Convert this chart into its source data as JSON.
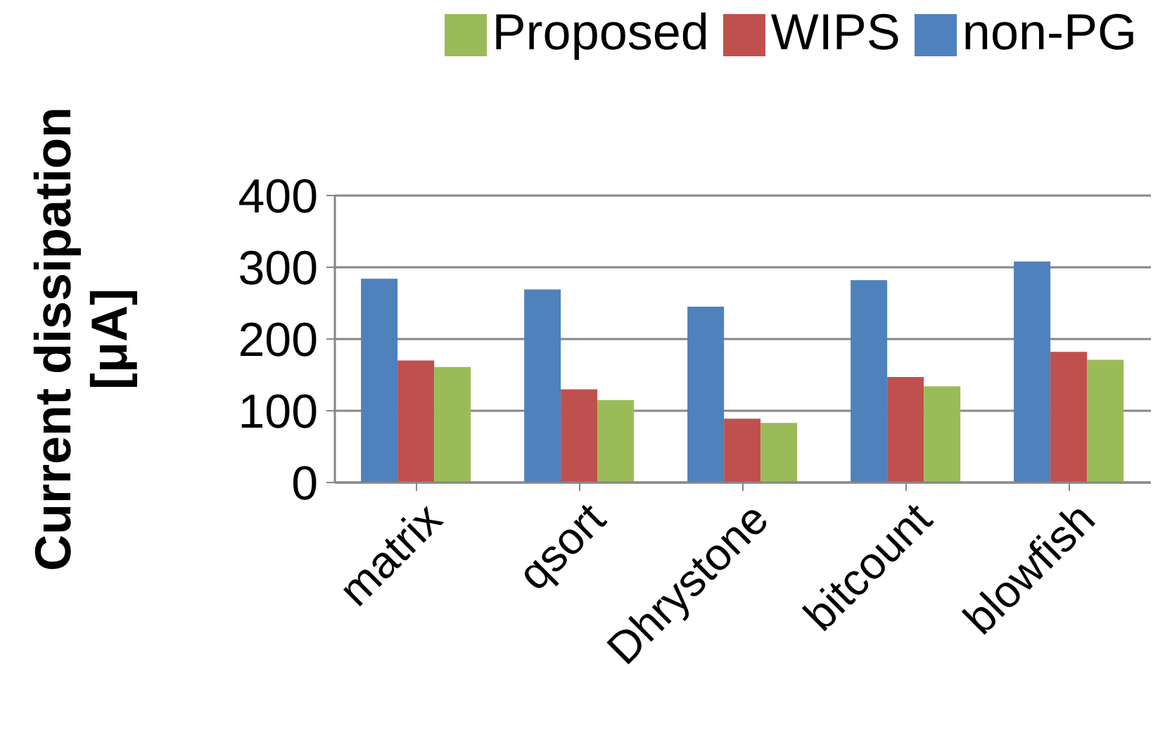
{
  "chart_data": {
    "type": "bar",
    "ylabel": "Current dissipation [μA]",
    "categories": [
      "matrix",
      "qsort",
      "Dhrystone",
      "bitcount",
      "blowfish"
    ],
    "series": [
      {
        "name": "non-PG",
        "color": "#4f81bd",
        "values": [
          284,
          269,
          245,
          282,
          308
        ]
      },
      {
        "name": "WIPS",
        "color": "#c0504d",
        "values": [
          170,
          130,
          89,
          147,
          182
        ]
      },
      {
        "name": "Proposed",
        "color": "#9bbb59",
        "values": [
          161,
          115,
          83,
          134,
          171
        ]
      }
    ],
    "ylim": [
      0,
      400
    ],
    "yticks": [
      0,
      100,
      200,
      300,
      400
    ],
    "grid": "y",
    "legend": "top"
  }
}
